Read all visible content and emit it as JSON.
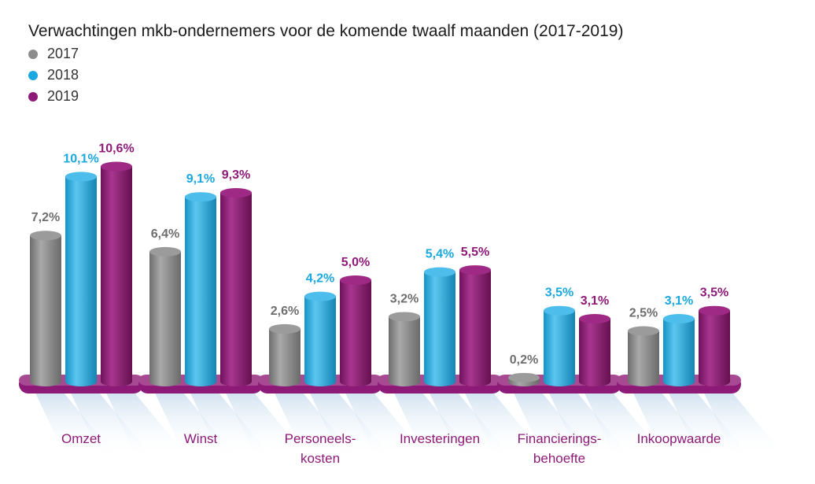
{
  "chart_data": {
    "type": "bar",
    "title": "Verwachtingen mkb-ondernemers voor de komende twaalf maanden (2017-2019)",
    "categories": [
      [
        "Omzet"
      ],
      [
        "Winst"
      ],
      [
        "Personeels-",
        "kosten"
      ],
      [
        "Investeringen"
      ],
      [
        "Financierings-",
        "behoefte"
      ],
      [
        "Inkoopwaarde"
      ]
    ],
    "series": [
      {
        "name": "2017",
        "color": "#8c8c8c",
        "values": [
          7.2,
          6.4,
          2.6,
          3.2,
          0.2,
          2.5
        ],
        "labels": [
          "7,2%",
          "6,4%",
          "2,6%",
          "3,2%",
          "0,2%",
          "2,5%"
        ]
      },
      {
        "name": "2018",
        "color": "#1aa8e0",
        "values": [
          10.1,
          9.1,
          4.2,
          5.4,
          3.5,
          3.1
        ],
        "labels": [
          "10,1%",
          "9,1%",
          "4,2%",
          "5,4%",
          "3,5%",
          "3,1%"
        ]
      },
      {
        "name": "2019",
        "color": "#8e1a78",
        "values": [
          10.6,
          9.3,
          5.0,
          5.5,
          3.1,
          3.5
        ],
        "labels": [
          "10,6%",
          "9,3%",
          "5,0%",
          "5,5%",
          "3,1%",
          "3,5%"
        ]
      }
    ],
    "ylim": [
      0,
      11
    ],
    "legend_position": "top-left",
    "grid": false,
    "category_label_color": "#8e1a78"
  }
}
